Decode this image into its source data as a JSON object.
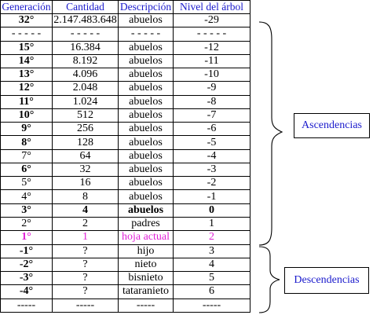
{
  "headers": [
    "Generación",
    "Cantidad",
    "Descripción",
    "Nivel del árbol"
  ],
  "rows": [
    {
      "gen": "32°",
      "qty": "2.147.483.648",
      "desc": "abuelos",
      "level": "-29"
    },
    {
      "gen": "- - - - -",
      "qty": "- - - - -",
      "desc": "- - - - -",
      "level": "- - - - -"
    },
    {
      "gen": "15°",
      "qty": "16.384",
      "desc": "abuelos",
      "level": "-12"
    },
    {
      "gen": "14°",
      "qty": "8.192",
      "desc": "abuelos",
      "level": "-11"
    },
    {
      "gen": "13°",
      "qty": "4.096",
      "desc": "abuelos",
      "level": "-10"
    },
    {
      "gen": "12°",
      "qty": "2.048",
      "desc": "abuelos",
      "level": "-9"
    },
    {
      "gen": "11°",
      "qty": "1.024",
      "desc": "abuelos",
      "level": "-8"
    },
    {
      "gen": "10°",
      "qty": "512",
      "desc": "abuelos",
      "level": "-7"
    },
    {
      "gen": "9°",
      "qty": "256",
      "desc": "abuelos",
      "level": "-6"
    },
    {
      "gen": "8°",
      "qty": "128",
      "desc": "abuelos",
      "level": "-5"
    },
    {
      "gen": "7°",
      "qty": "64",
      "desc": "abuelos",
      "level": "-4"
    },
    {
      "gen": "6°",
      "qty": "32",
      "desc": "abuelos",
      "level": "-3"
    },
    {
      "gen": "5°",
      "qty": "16",
      "desc": "abuelos",
      "level": "-2"
    },
    {
      "gen": "4°",
      "qty": "8",
      "desc": "abuelos",
      "level": "-1"
    },
    {
      "gen": "3°",
      "qty": "4",
      "desc": "abuelos",
      "level": "0"
    },
    {
      "gen": "2°",
      "qty": "2",
      "desc": "padres",
      "level": "1"
    },
    {
      "gen": "1°",
      "qty": "1",
      "desc": "hoja actual",
      "level": "2"
    },
    {
      "gen": "-1°",
      "qty": "?",
      "desc": "hijo",
      "level": "3"
    },
    {
      "gen": "-2°",
      "qty": "?",
      "desc": "nieto",
      "level": "4"
    },
    {
      "gen": "-3°",
      "qty": "?",
      "desc": "bisnieto",
      "level": "5"
    },
    {
      "gen": "-4°",
      "qty": "?",
      "desc": "tataranieto",
      "level": "6"
    },
    {
      "gen": "-----",
      "qty": "-----",
      "desc": "-----",
      "level": "-----"
    }
  ],
  "labels": {
    "ascendencias": "Ascendencias",
    "descendencias": "Descendencias"
  },
  "colors": {
    "header_text": "#1a1acc",
    "label_text": "#1a1acc",
    "current_row_text": "#e020d6",
    "border": "#000000"
  }
}
